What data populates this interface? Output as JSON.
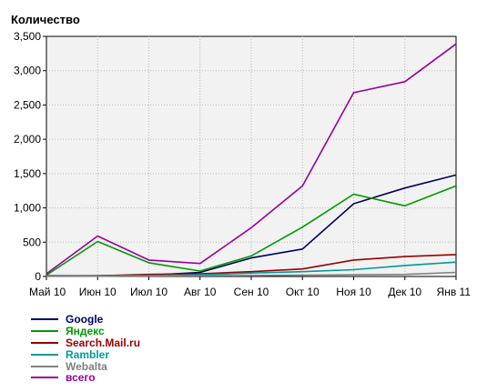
{
  "chart_data": {
    "type": "line",
    "title": "",
    "ylabel": "Количество",
    "xlabel": "",
    "categories": [
      "Май 10",
      "Июн 10",
      "Июл 10",
      "Авг 10",
      "Сен 10",
      "Окт 10",
      "Ноя 10",
      "Дек 10",
      "Янв 11"
    ],
    "ylim": [
      0,
      3500
    ],
    "yticks": [
      0,
      500,
      1000,
      1500,
      2000,
      2500,
      3000,
      3500
    ],
    "ytick_labels": [
      "0",
      "500",
      "1,000",
      "1,500",
      "2,000",
      "2,500",
      "3,000",
      "3,500"
    ],
    "grid": true,
    "legend_position": "bottom-left",
    "series": [
      {
        "name": "Google",
        "color": "#000066",
        "values": [
          10,
          10,
          20,
          60,
          270,
          400,
          1060,
          1290,
          1480
        ]
      },
      {
        "name": "Яндекс",
        "color": "#009900",
        "values": [
          20,
          510,
          200,
          80,
          300,
          720,
          1200,
          1030,
          1320
        ]
      },
      {
        "name": "Search.Mail.ru",
        "color": "#990000",
        "values": [
          5,
          10,
          30,
          40,
          70,
          110,
          240,
          290,
          320
        ]
      },
      {
        "name": "Rambler",
        "color": "#009999",
        "values": [
          5,
          8,
          15,
          25,
          50,
          70,
          100,
          160,
          210
        ]
      },
      {
        "name": "Webalta",
        "color": "#808080",
        "values": [
          2,
          4,
          8,
          10,
          15,
          20,
          25,
          30,
          60
        ]
      },
      {
        "name": "всего",
        "color": "#990099",
        "values": [
          40,
          590,
          240,
          190,
          710,
          1320,
          2680,
          2840,
          3390
        ]
      }
    ]
  }
}
